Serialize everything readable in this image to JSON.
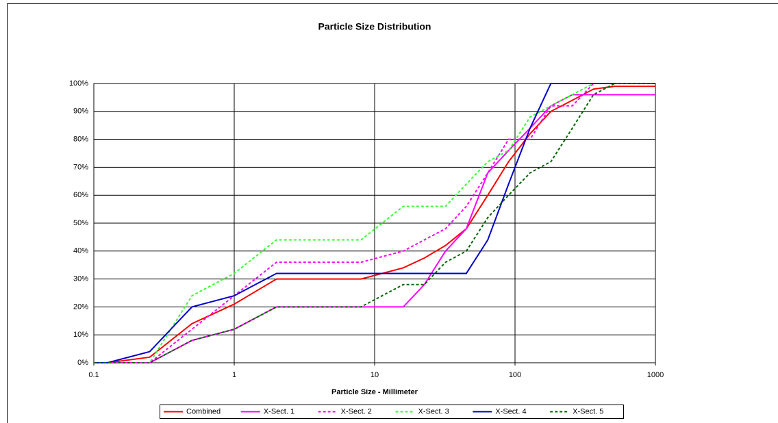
{
  "chart_data": {
    "type": "line",
    "title": "Particle Size Distribution",
    "x_label": "Particle Size - Millimeter",
    "x_scale": "log",
    "x": [
      0.1,
      0.125,
      0.25,
      0.5,
      1,
      2,
      4,
      8,
      16,
      22.6,
      32,
      45,
      64,
      90,
      128,
      180,
      256,
      362,
      512,
      1000
    ],
    "xlim": [
      0.1,
      1000
    ],
    "xticks": [
      0.1,
      1,
      10,
      100,
      1000
    ],
    "ylim": [
      0,
      100
    ],
    "yticks": [
      {
        "value": 0,
        "label": "0%"
      },
      {
        "value": 10,
        "label": "10%"
      },
      {
        "value": 20,
        "label": "20%"
      },
      {
        "value": 30,
        "label": "30%"
      },
      {
        "value": 40,
        "label": "40%"
      },
      {
        "value": 50,
        "label": "50%"
      },
      {
        "value": 60,
        "label": "60%"
      },
      {
        "value": 70,
        "label": "70%"
      },
      {
        "value": 80,
        "label": "80%"
      },
      {
        "value": 90,
        "label": "90%"
      },
      {
        "value": 100,
        "label": "100%"
      }
    ],
    "grid": true,
    "legend": "bottom",
    "series": [
      {
        "name": "Combined",
        "color": "#ff0000",
        "dashed": false,
        "values": [
          0,
          0,
          2,
          14,
          21,
          30,
          30,
          30,
          34,
          37.5,
          42,
          48,
          60,
          72,
          82,
          90,
          94,
          98,
          99,
          99
        ]
      },
      {
        "name": "X-Sect. 1",
        "color": "#ff00ff",
        "dashed": false,
        "values": [
          0,
          0,
          0,
          8,
          12,
          20,
          20,
          20,
          20,
          28,
          40,
          48,
          68,
          76,
          84,
          92,
          96,
          96,
          96,
          96
        ]
      },
      {
        "name": "X-Sect. 2",
        "color": "#ff00ff",
        "dashed": true,
        "values": [
          0,
          0,
          0,
          12,
          24,
          36,
          36,
          36,
          40,
          44,
          48,
          56,
          68,
          80,
          80,
          92,
          92,
          100,
          100,
          100
        ]
      },
      {
        "name": "X-Sect. 3",
        "color": "#33ff33",
        "dashed": true,
        "values": [
          0,
          0,
          0,
          24,
          32,
          44,
          44,
          44,
          56,
          56,
          56,
          64,
          72,
          76,
          88,
          92,
          96,
          100,
          100,
          100
        ]
      },
      {
        "name": "X-Sect. 4",
        "color": "#0000cc",
        "dashed": false,
        "values": [
          0,
          0,
          4,
          20,
          24,
          32,
          32,
          32,
          32,
          32,
          32,
          32,
          44,
          64,
          84,
          100,
          100,
          100,
          100,
          100
        ]
      },
      {
        "name": "X-Sect. 5",
        "color": "#006600",
        "dashed": true,
        "values": [
          0,
          0,
          0,
          8,
          12,
          20,
          20,
          20,
          28,
          28,
          36,
          40,
          52,
          60,
          68,
          72,
          84,
          96,
          100,
          100
        ]
      }
    ]
  }
}
